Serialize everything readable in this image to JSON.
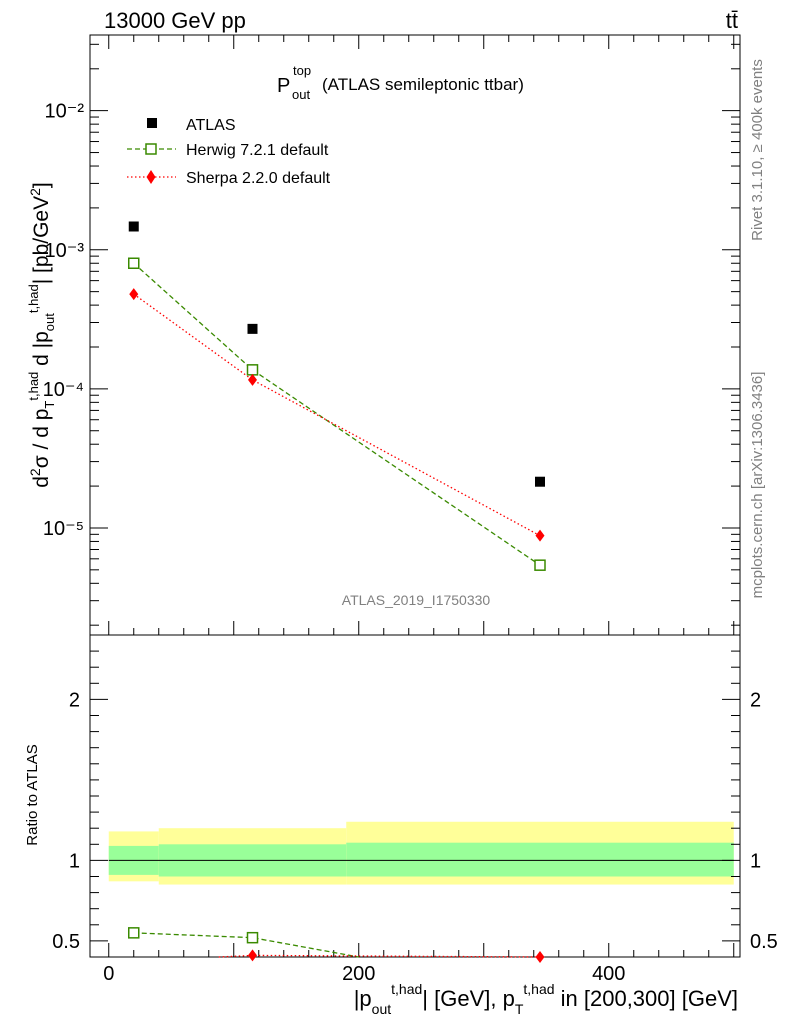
{
  "header": {
    "energy_label": "13000 GeV pp",
    "process_label": "tt̄"
  },
  "title": {
    "main": "P",
    "sup": "top",
    "sub": "out",
    "rest": "(ATLAS semileptonic ttbar)"
  },
  "side_labels": {
    "rivet": "Rivet 3.1.10, ≥ 400k events",
    "mcplots": "mcplots.cern.ch [arXiv:1306.3436]"
  },
  "analysis_label": "ATLAS_2019_I1750330",
  "axes": {
    "ylabel_top": "d²σ / d p_T^{t,had} d |p_out^{t,had}| [pb/GeV²]",
    "ylabel_bottom": "Ratio to ATLAS",
    "xlabel": "|p_out^{t,had}| [GeV], p_T^{t,had} in [200,300] [GeV]",
    "x_ticks": [
      "0",
      "200",
      "400"
    ],
    "y_top_ticks": [
      "10⁻⁵",
      "10⁻⁴",
      "10⁻³",
      "10⁻²"
    ],
    "y_bottom_ticks": [
      "0.5",
      "1",
      "2"
    ]
  },
  "chart_data": [
    {
      "type": "scatter",
      "panel": "main",
      "yscale": "log",
      "xlim": [
        -15,
        505
      ],
      "ylim": [
        1.7e-06,
        0.035
      ],
      "series": [
        {
          "name": "ATLAS",
          "color": "#000000",
          "marker": "square-filled",
          "x": [
            20,
            115,
            345
          ],
          "y": [
            0.00147,
            0.00027,
            2.15e-05
          ]
        },
        {
          "name": "Herwig 7.2.1 default",
          "color": "#3a8a00",
          "marker": "square-open",
          "line": "dashed",
          "x": [
            20,
            115,
            345
          ],
          "y": [
            0.0008,
            0.000137,
            5.4e-06
          ]
        },
        {
          "name": "Sherpa 2.2.0 default",
          "color": "#ff0000",
          "marker": "diamond",
          "line": "dotted",
          "x": [
            20,
            115,
            345
          ],
          "y": [
            0.00048,
            0.000116,
            8.8e-06
          ]
        }
      ],
      "legend_placement": "top-left"
    },
    {
      "type": "line",
      "panel": "ratio",
      "xlim": [
        -15,
        505
      ],
      "ylim": [
        0.4,
        2.4
      ],
      "uncertainty_bands": [
        {
          "x0": 0,
          "x1": 40,
          "inner": [
            0.91,
            1.09
          ],
          "outer": [
            0.87,
            1.18
          ]
        },
        {
          "x0": 40,
          "x1": 190,
          "inner": [
            0.9,
            1.1
          ],
          "outer": [
            0.85,
            1.2
          ]
        },
        {
          "x0": 190,
          "x1": 500,
          "inner": [
            0.9,
            1.11
          ],
          "outer": [
            0.85,
            1.24
          ]
        }
      ],
      "series": [
        {
          "name": "Herwig 7.2.1 default",
          "color": "#3a8a00",
          "x": [
            20,
            115,
            200
          ],
          "y": [
            0.55,
            0.52,
            0.4
          ]
        },
        {
          "name": "Sherpa 2.2.0 default",
          "color": "#ff0000",
          "x": [
            88,
            115,
            345
          ],
          "y": [
            0.4,
            0.41,
            0.4
          ]
        }
      ]
    }
  ]
}
